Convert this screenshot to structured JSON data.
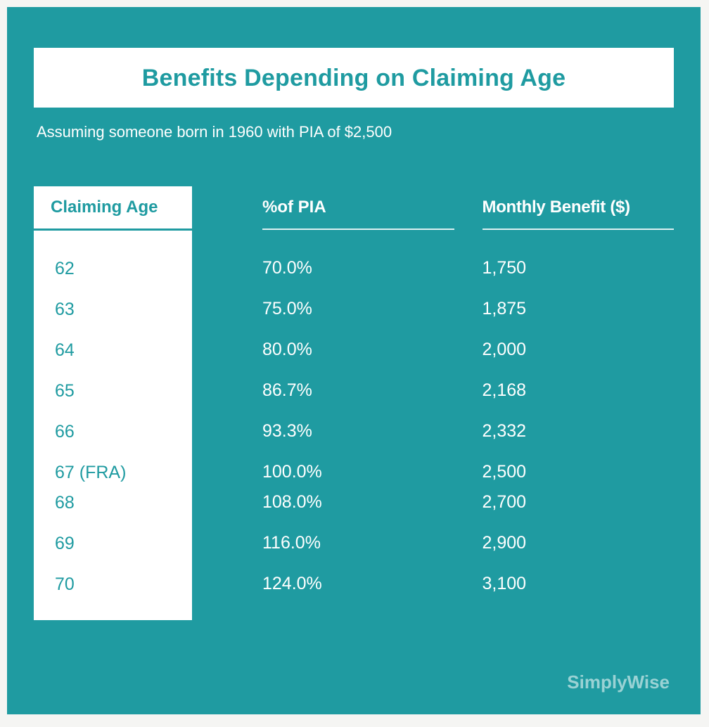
{
  "style": {
    "background_color": "#1f9ba1",
    "title_box_bg": "#ffffff",
    "accent_color": "#1f9ba1",
    "text_color": "#ffffff",
    "col1_bg": "#ffffff",
    "title_fontsize": 34,
    "subtitle_fontsize": 22,
    "header_fontsize": 24,
    "cell_fontsize": 25,
    "brand_color": "rgba(255,255,255,0.55)"
  },
  "title": "Benefits Depending on Claiming Age",
  "subtitle": "Assuming someone born in 1960 with PIA of $2,500",
  "table": {
    "type": "table",
    "columns": [
      "Claiming Age",
      "%of PIA",
      "Monthly Benefit ($)"
    ],
    "rows": [
      {
        "age": "62",
        "pia": "70.0%",
        "benefit": "1,750",
        "tight": false
      },
      {
        "age": "63",
        "pia": "75.0%",
        "benefit": "1,875",
        "tight": false
      },
      {
        "age": "64",
        "pia": "80.0%",
        "benefit": "2,000",
        "tight": false
      },
      {
        "age": "65",
        "pia": "86.7%",
        "benefit": "2,168",
        "tight": false
      },
      {
        "age": "66",
        "pia": "93.3%",
        "benefit": "2,332",
        "tight": false
      },
      {
        "age": "67 (FRA)",
        "pia": "100.0%",
        "benefit": "2,500",
        "tight": true
      },
      {
        "age": "68",
        "pia": "108.0%",
        "benefit": "2,700",
        "tight": false
      },
      {
        "age": "69",
        "pia": "116.0%",
        "benefit": "2,900",
        "tight": false
      },
      {
        "age": "70",
        "pia": "124.0%",
        "benefit": "3,100",
        "tight": false
      }
    ]
  },
  "brand": "SimplyWise"
}
